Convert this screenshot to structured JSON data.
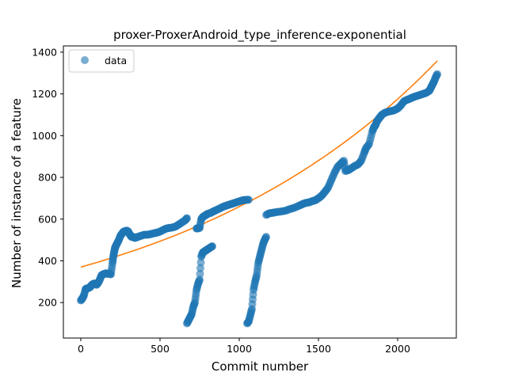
{
  "chart_data": {
    "type": "scatter",
    "title": "proxer-ProxerAndroid_type_inference-exponential",
    "xlabel": "Commit number",
    "ylabel": "Number of instance of a feature",
    "xlim": [
      -110,
      2370
    ],
    "ylim": [
      30,
      1430
    ],
    "xticks": [
      0,
      500,
      1000,
      1500,
      2000
    ],
    "yticks": [
      200,
      400,
      600,
      800,
      1000,
      1200,
      1400
    ],
    "grid": false,
    "legend": {
      "placement": "top-left",
      "entries": [
        "data"
      ]
    },
    "colors": {
      "data": "#1f77b4",
      "fit": "#ff7f0e"
    },
    "series": [
      {
        "name": "data",
        "kind": "scatter",
        "segments": [
          {
            "x": [
              0,
              10,
              20,
              30,
              40,
              50,
              60,
              70,
              80,
              90,
              100,
              110,
              120,
              130,
              140,
              150,
              160,
              170,
              180,
              190,
              200,
              205,
              210,
              215,
              220,
              230,
              240,
              250,
              260,
              270,
              280,
              290,
              300,
              310,
              320,
              330,
              340,
              350,
              360,
              380,
              400,
              420,
              440,
              460,
              480,
              500,
              520,
              540,
              560,
              580,
              600,
              620,
              640,
              660,
              670
            ],
            "y": [
              210,
              220,
              235,
              265,
              268,
              270,
              275,
              285,
              290,
              292,
              285,
              295,
              310,
              330,
              335,
              338,
              340,
              338,
              340,
              335,
              390,
              420,
              440,
              460,
              470,
              485,
              500,
              520,
              530,
              540,
              542,
              545,
              540,
              525,
              515,
              515,
              510,
              512,
              515,
              520,
              525,
              525,
              528,
              532,
              535,
              540,
              548,
              555,
              558,
              560,
              565,
              575,
              585,
              595,
              605
            ]
          },
          {
            "x": [
              670,
              680,
              690,
              700,
              710,
              720,
              730,
              740,
              750,
              760,
              770,
              780,
              790,
              800,
              810,
              820,
              830
            ],
            "y": [
              100,
              115,
              130,
              145,
              180,
              200,
              260,
              290,
              310,
              420,
              440,
              445,
              450,
              455,
              460,
              465,
              470
            ]
          },
          {
            "x": [
              730,
              740,
              750,
              760,
              770,
              780,
              790,
              800,
              820,
              840,
              860,
              880,
              900,
              920,
              940,
              960,
              980,
              1000,
              1020,
              1040,
              1060
            ],
            "y": [
              555,
              556,
              558,
              600,
              610,
              615,
              620,
              625,
              630,
              638,
              645,
              652,
              660,
              665,
              670,
              675,
              680,
              685,
              690,
              692,
              693
            ]
          },
          {
            "x": [
              1050,
              1060,
              1070,
              1080,
              1090,
              1100,
              1110,
              1120,
              1130,
              1140,
              1150,
              1160,
              1170
            ],
            "y": [
              100,
              110,
              140,
              170,
              260,
              300,
              330,
              390,
              420,
              450,
              480,
              500,
              515
            ]
          },
          {
            "x": [
              1170,
              1190,
              1210,
              1230,
              1260,
              1290,
              1320,
              1350,
              1380,
              1400,
              1420,
              1440,
              1460,
              1480,
              1500,
              1520,
              1540,
              1560,
              1580,
              1600,
              1620,
              1640,
              1660,
              1670,
              1690,
              1710,
              1730,
              1750,
              1770,
              1790,
              1800,
              1820,
              1840,
              1850,
              1860,
              1870,
              1880,
              1890,
              1900,
              1920,
              1940,
              1960,
              1980,
              2000,
              2020,
              2040,
              2060,
              2080,
              2100,
              2120,
              2140,
              2160,
              2180,
              2200,
              2210,
              2220,
              2230,
              2240,
              2250
            ],
            "y": [
              620,
              628,
              630,
              633,
              636,
              640,
              648,
              655,
              665,
              672,
              678,
              680,
              686,
              690,
              700,
              712,
              730,
              750,
              785,
              820,
              850,
              865,
              880,
              830,
              835,
              845,
              855,
              862,
              880,
              920,
              940,
              960,
              1020,
              1040,
              1050,
              1070,
              1080,
              1090,
              1100,
              1110,
              1115,
              1118,
              1122,
              1130,
              1145,
              1165,
              1172,
              1178,
              1185,
              1190,
              1195,
              1200,
              1205,
              1215,
              1230,
              1245,
              1260,
              1280,
              1295
            ]
          }
        ]
      },
      {
        "name": "",
        "kind": "line",
        "fit": {
          "a": 370,
          "b": 0.000578
        },
        "x_range": [
          0,
          2250
        ]
      }
    ]
  }
}
